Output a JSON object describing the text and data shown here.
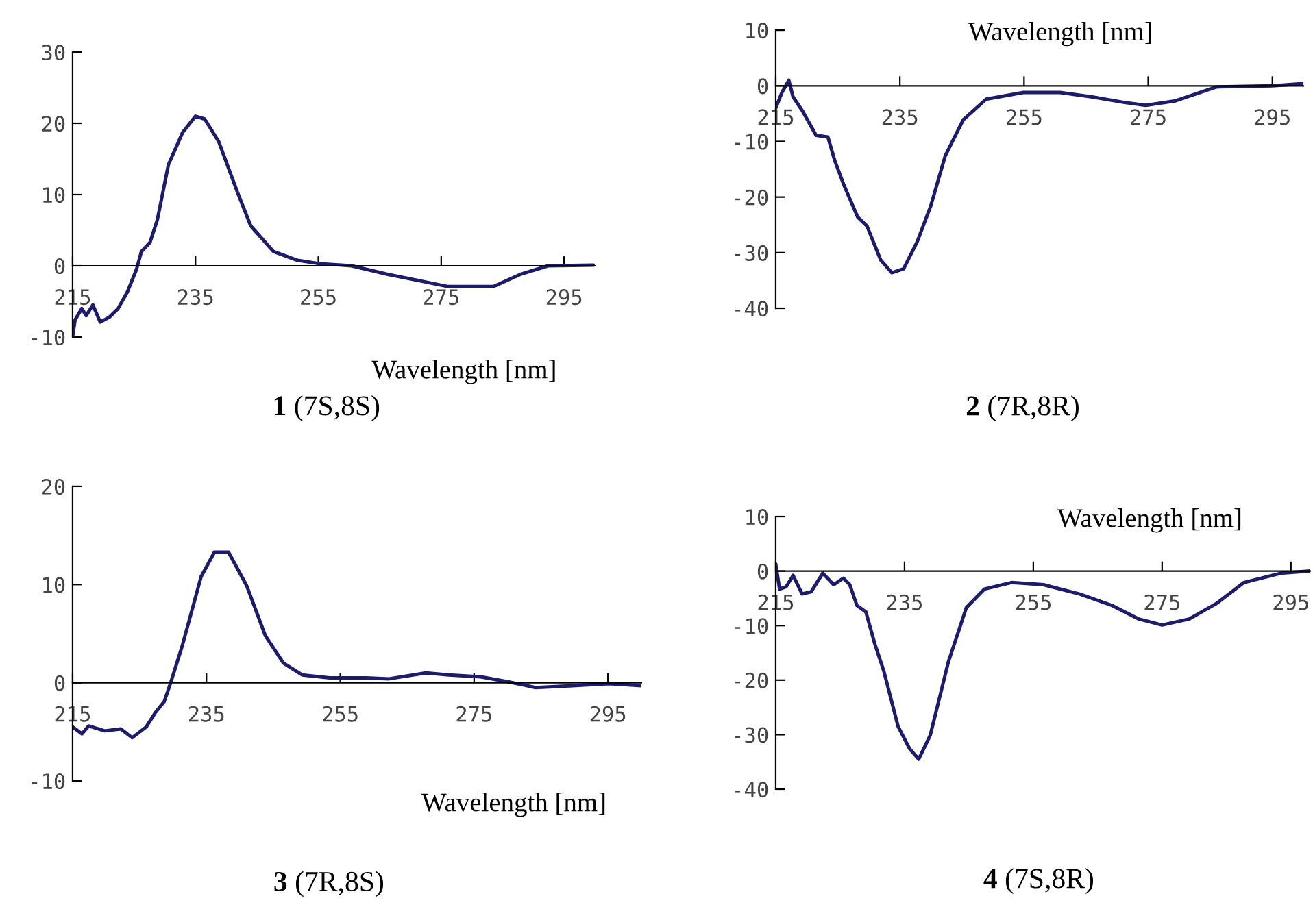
{
  "chart_data": [
    {
      "type": "line",
      "title": "1 (7S,8S)",
      "xlabel": "Wavelength [nm]",
      "xlim": [
        215,
        300
      ],
      "ylim": [
        -10,
        30
      ],
      "xticks": [
        215,
        235,
        255,
        275,
        295
      ],
      "yticks": [
        -10,
        0,
        10,
        20,
        30
      ],
      "series": [
        {
          "color": "#1c1c6b",
          "x": [
            215,
            215.4,
            216.5,
            217.2,
            218.3,
            219.5,
            221,
            222.4,
            223.9,
            225.4,
            226.2,
            227.6,
            228.8,
            230.6,
            232.9,
            235,
            236.5,
            238.8,
            241.8,
            244,
            247.7,
            251.5,
            255.2,
            260.4,
            266.3,
            271.5,
            276,
            283.5,
            287.9,
            292.4,
            299.8
          ],
          "values": [
            -10,
            -7.6,
            -6,
            -7,
            -5.5,
            -7.9,
            -7.2,
            -6,
            -3.7,
            -0.5,
            2,
            3.3,
            6.5,
            14.2,
            18.7,
            21,
            20.6,
            17.4,
            10.4,
            5.6,
            2,
            0.8,
            0.3,
            0,
            -1.2,
            -2.1,
            -2.9,
            -2.9,
            -1.2,
            0,
            0.1
          ]
        }
      ]
    },
    {
      "type": "line",
      "title": "2 (7R,8R)",
      "xlabel": "Wavelength [nm]",
      "xlim": [
        215,
        300
      ],
      "ylim": [
        -40,
        10
      ],
      "xticks": [
        215,
        235,
        255,
        275,
        295
      ],
      "yticks": [
        -40,
        -30,
        -20,
        -10,
        0,
        10
      ],
      "series": [
        {
          "color": "#1c1c6b",
          "x": [
            215,
            216,
            217.1,
            217.8,
            219.3,
            221.5,
            223.4,
            224.5,
            226,
            228.2,
            229.7,
            231.9,
            233.7,
            235.6,
            237.8,
            240,
            242.3,
            245.2,
            248.9,
            254.9,
            260.8,
            266,
            271.2,
            274.6,
            279.4,
            286,
            295,
            300
          ],
          "values": [
            -4,
            -1.2,
            1,
            -2,
            -4.5,
            -8.9,
            -9.2,
            -13.4,
            -17.9,
            -23.6,
            -25.2,
            -31.3,
            -33.6,
            -32.9,
            -28,
            -21.5,
            -12.6,
            -6.1,
            -2.4,
            -1.2,
            -1.2,
            -2,
            -3,
            -3.5,
            -2.7,
            -0.2,
            0,
            0.4
          ]
        }
      ]
    },
    {
      "type": "line",
      "title": "3 (7R,8S)",
      "xlabel": "Wavelength [nm]",
      "xlim": [
        215,
        300
      ],
      "ylim": [
        -10,
        20
      ],
      "xticks": [
        215,
        235,
        255,
        275,
        295
      ],
      "yticks": [
        -10,
        0,
        10,
        20
      ],
      "series": [
        {
          "color": "#1c1c6b",
          "x": [
            215,
            216.4,
            217.4,
            219.8,
            222.2,
            223.9,
            226,
            227.3,
            228.7,
            229.7,
            231.4,
            234.2,
            236.2,
            238.3,
            241,
            243.8,
            246.5,
            249.3,
            253.4,
            258.9,
            262.3,
            267.8,
            271.2,
            276,
            280.1,
            284.2,
            289.7,
            295.2,
            300
          ],
          "values": [
            -4.5,
            -5.2,
            -4.4,
            -4.9,
            -4.7,
            -5.6,
            -4.5,
            -3.1,
            -1.9,
            0.1,
            3.8,
            10.8,
            13.3,
            13.3,
            9.9,
            4.8,
            2,
            0.8,
            0.5,
            0.5,
            0.4,
            1,
            0.8,
            0.6,
            0.1,
            -0.5,
            -0.3,
            -0.1,
            -0.3
          ]
        }
      ]
    },
    {
      "type": "line",
      "title": "4 (7S,8R)",
      "xlabel": "Wavelength [nm]",
      "xlim": [
        215,
        298
      ],
      "ylim": [
        -40,
        10
      ],
      "xticks": [
        215,
        235,
        255,
        275,
        295
      ],
      "yticks": [
        -40,
        -30,
        -20,
        -10,
        0,
        10
      ],
      "series": [
        {
          "color": "#1c1c6b",
          "x": [
            215,
            215.6,
            216.6,
            217.7,
            219.1,
            220.5,
            222.3,
            224,
            225.5,
            226.5,
            227.6,
            229,
            230.4,
            231.8,
            234,
            235.8,
            237.2,
            239,
            241.8,
            244.6,
            247.4,
            251.6,
            256.6,
            262.2,
            267.2,
            271.4,
            275,
            279.2,
            283.5,
            287.7,
            293.4,
            298
          ],
          "values": [
            1.3,
            -3.3,
            -2.9,
            -0.8,
            -4.2,
            -3.8,
            -0.4,
            -2.5,
            -1.3,
            -2.5,
            -6.3,
            -7.5,
            -13.4,
            -18.4,
            -28.5,
            -32.6,
            -34.5,
            -30.1,
            -16.7,
            -6.7,
            -3.3,
            -2.1,
            -2.5,
            -4.2,
            -6.3,
            -8.8,
            -9.9,
            -8.8,
            -5.9,
            -2.1,
            -0.4,
            0
          ]
        }
      ]
    }
  ]
}
